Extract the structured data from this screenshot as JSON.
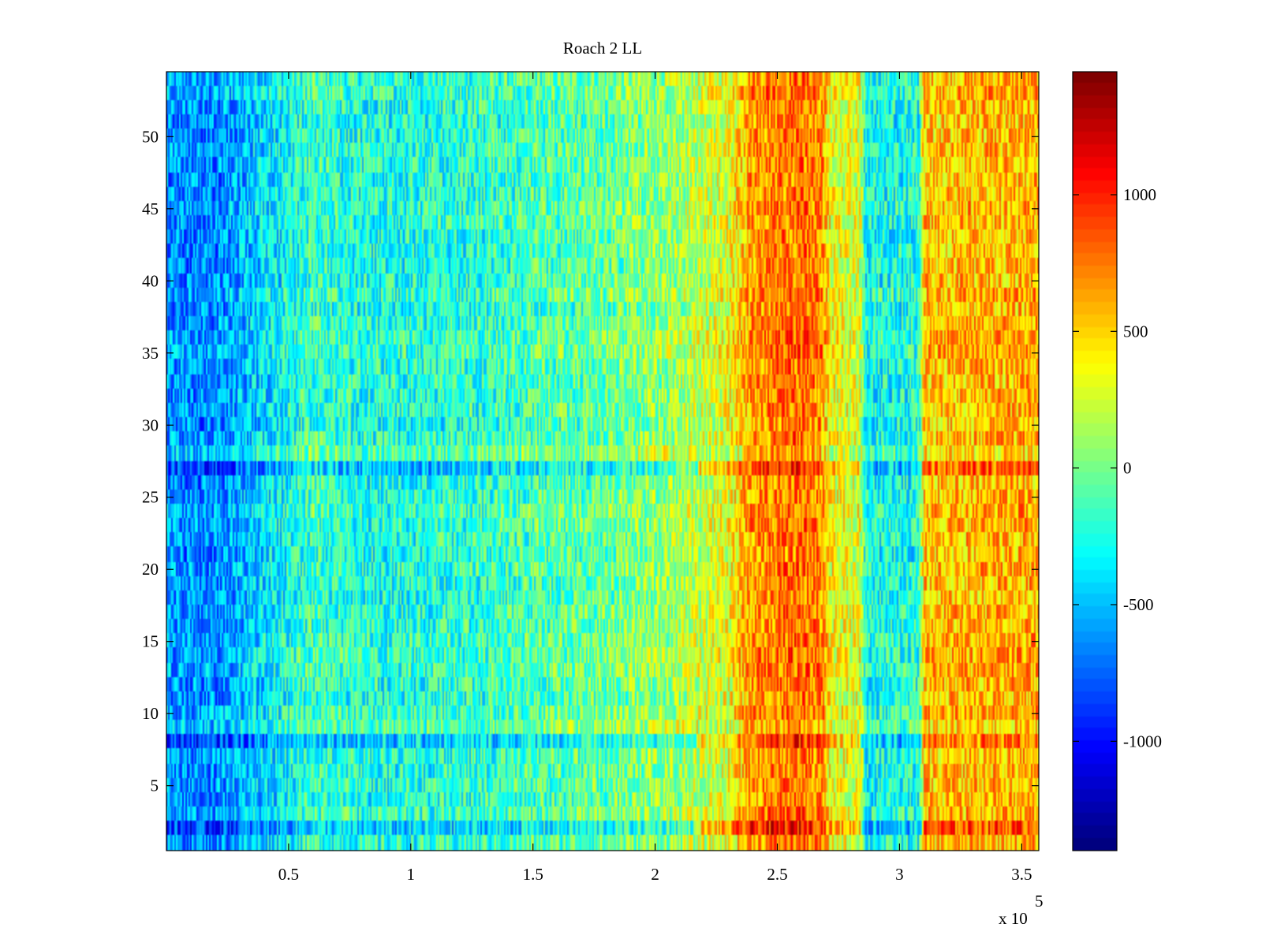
{
  "chart_data": {
    "type": "heatmap",
    "title": "Roach 2 LL",
    "xlabel": "",
    "ylabel": "",
    "x_multiplier_label": "x 10",
    "x_multiplier_exponent": "5",
    "xlim": [
      0,
      3.57
    ],
    "ylim": [
      0.5,
      54.5
    ],
    "x_ticks": [
      {
        "value": 0.5,
        "label": "0.5"
      },
      {
        "value": 1,
        "label": "1"
      },
      {
        "value": 1.5,
        "label": "1.5"
      },
      {
        "value": 2,
        "label": "2"
      },
      {
        "value": 2.5,
        "label": "2.5"
      },
      {
        "value": 3,
        "label": "3"
      },
      {
        "value": 3.5,
        "label": "3.5"
      }
    ],
    "y_ticks": [
      {
        "value": 5,
        "label": "5"
      },
      {
        "value": 10,
        "label": "10"
      },
      {
        "value": 15,
        "label": "15"
      },
      {
        "value": 20,
        "label": "20"
      },
      {
        "value": 25,
        "label": "25"
      },
      {
        "value": 30,
        "label": "30"
      },
      {
        "value": 35,
        "label": "35"
      },
      {
        "value": 40,
        "label": "40"
      },
      {
        "value": 45,
        "label": "45"
      },
      {
        "value": 50,
        "label": "50"
      }
    ],
    "rows": 54,
    "colormap": "jet",
    "clim": [
      -1400,
      1450
    ],
    "colorbar_ticks": [
      {
        "value": 1000,
        "label": "1000"
      },
      {
        "value": 500,
        "label": "500"
      },
      {
        "value": 0,
        "label": "0"
      },
      {
        "value": -500,
        "label": "-500"
      },
      {
        "value": -1000,
        "label": "-1000"
      }
    ],
    "column_profile": [
      {
        "x": 0.0,
        "mean": -620
      },
      {
        "x": 0.2,
        "mean": -650
      },
      {
        "x": 0.45,
        "mean": -350
      },
      {
        "x": 0.6,
        "mean": -150
      },
      {
        "x": 0.8,
        "mean": -250
      },
      {
        "x": 1.2,
        "mean": -220
      },
      {
        "x": 1.5,
        "mean": -120
      },
      {
        "x": 1.8,
        "mean": -40
      },
      {
        "x": 2.1,
        "mean": 120
      },
      {
        "x": 2.3,
        "mean": 330
      },
      {
        "x": 2.4,
        "mean": 700
      },
      {
        "x": 2.6,
        "mean": 800
      },
      {
        "x": 2.68,
        "mean": 720
      },
      {
        "x": 2.72,
        "mean": 350
      },
      {
        "x": 2.84,
        "mean": 300
      },
      {
        "x": 2.86,
        "mean": -280
      },
      {
        "x": 3.08,
        "mean": -250
      },
      {
        "x": 3.1,
        "mean": 550
      },
      {
        "x": 3.3,
        "mean": 580
      },
      {
        "x": 3.57,
        "mean": 620
      }
    ],
    "row_offsets": [
      {
        "row": 2,
        "offset": -280
      },
      {
        "row": 8,
        "offset": -220
      },
      {
        "row": 9,
        "offset": 120
      },
      {
        "row": 27,
        "offset": -250
      },
      {
        "row": 28,
        "offset": 150
      }
    ]
  }
}
